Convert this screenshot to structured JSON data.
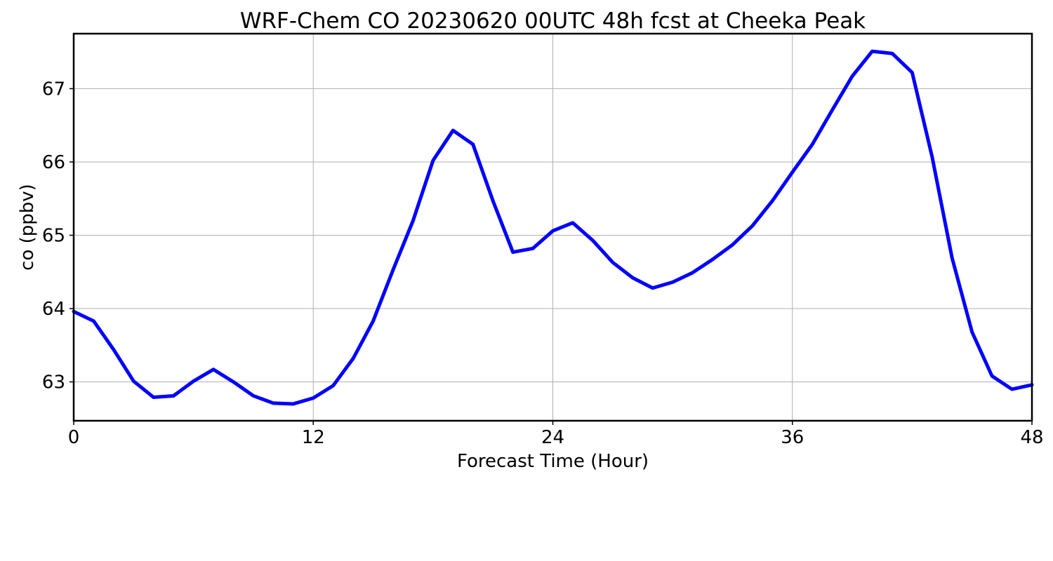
{
  "chart_data": {
    "type": "line",
    "title": "WRF-Chem CO  20230620 00UTC 48h fcst at Cheeka Peak",
    "xlabel": "Forecast Time (Hour)",
    "ylabel": "co  (ppbv)",
    "xlim": [
      0,
      48
    ],
    "ylim": [
      62.47,
      67.75
    ],
    "xticks": [
      0,
      12,
      24,
      36,
      48
    ],
    "yticks": [
      63,
      64,
      65,
      66,
      67
    ],
    "grid": true,
    "legend": "none",
    "series": [
      {
        "color": "#0000ff",
        "x": [
          0,
          1,
          2,
          3,
          4,
          5,
          6,
          7,
          8,
          9,
          10,
          11,
          12,
          13,
          14,
          15,
          16,
          17,
          18,
          19,
          20,
          21,
          22,
          23,
          24,
          25,
          26,
          27,
          28,
          29,
          30,
          31,
          32,
          33,
          34,
          35,
          36,
          37,
          38,
          39,
          40,
          41,
          42,
          43,
          44,
          45,
          46,
          47,
          48
        ],
        "y": [
          63.96,
          63.83,
          63.44,
          63.01,
          62.79,
          62.81,
          63.01,
          63.17,
          63.0,
          62.81,
          62.71,
          62.7,
          62.78,
          62.95,
          63.32,
          63.83,
          64.53,
          65.2,
          66.02,
          66.43,
          66.24,
          65.47,
          64.77,
          64.82,
          65.06,
          65.17,
          64.93,
          64.63,
          64.42,
          64.28,
          64.36,
          64.49,
          64.67,
          64.87,
          65.13,
          65.47,
          65.86,
          66.24,
          66.71,
          67.17,
          67.51,
          67.48,
          67.22,
          66.07,
          64.69,
          63.68,
          63.08,
          62.9,
          62.96
        ]
      }
    ]
  }
}
